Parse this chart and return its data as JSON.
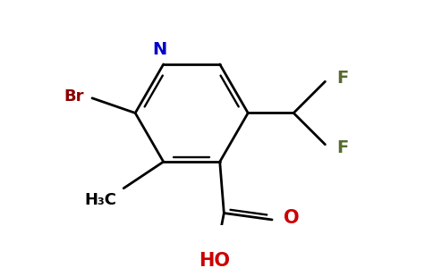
{
  "background_color": "#ffffff",
  "bond_color": "#000000",
  "N_color": "#0000cc",
  "Br_color": "#8b0000",
  "O_color": "#cc0000",
  "F_color": "#556b2f",
  "label_N": "N",
  "label_Br": "Br",
  "label_O": "O",
  "label_HO": "HO",
  "label_F1": "F",
  "label_F2": "F",
  "label_CH3": "H₃C",
  "figsize": [
    4.84,
    3.0
  ],
  "dpi": 100
}
